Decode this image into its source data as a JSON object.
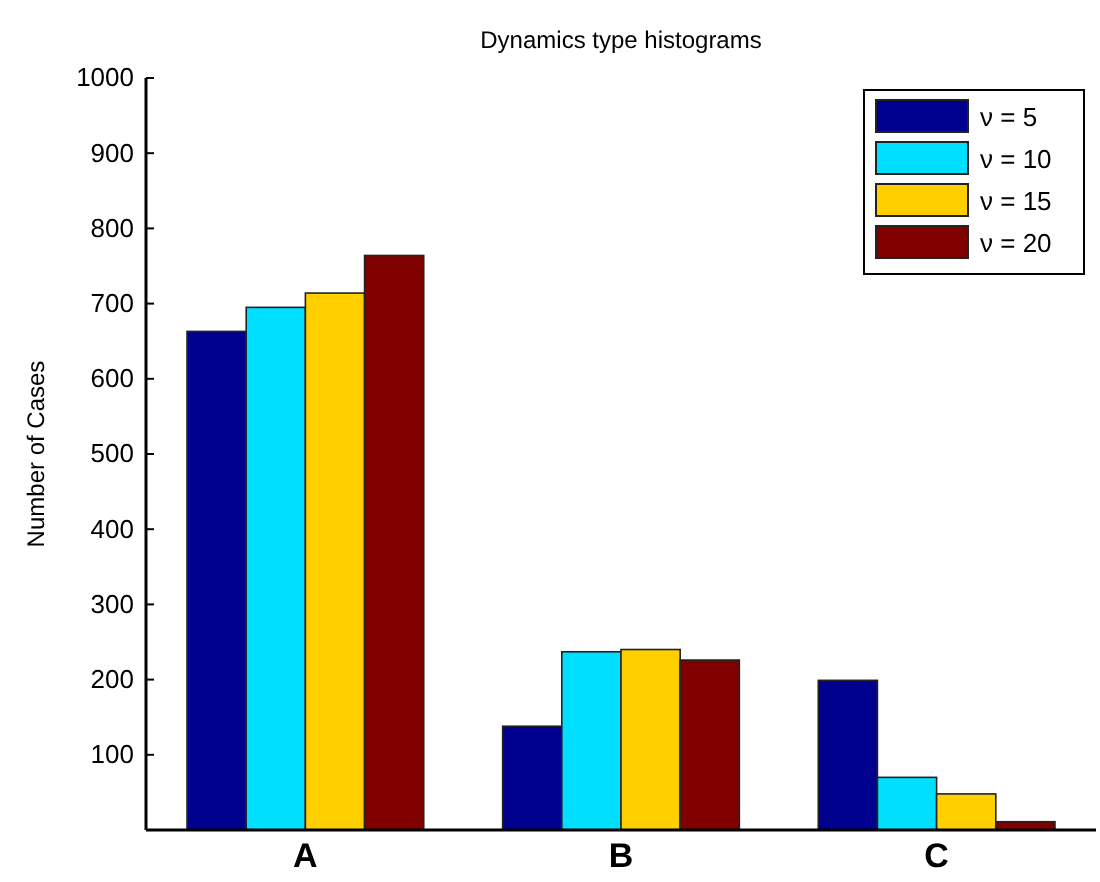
{
  "chart_data": {
    "type": "bar",
    "title": "Dynamics type histograms",
    "ylabel": "Number of Cases",
    "categories": [
      "A",
      "B",
      "C"
    ],
    "series": [
      {
        "name": "ν = 5",
        "color": "#00008f",
        "values": [
          663,
          138,
          199
        ]
      },
      {
        "name": "ν = 10",
        "color": "#00dfff",
        "values": [
          695,
          237,
          70
        ]
      },
      {
        "name": "ν = 15",
        "color": "#ffcf00",
        "values": [
          714,
          240,
          48
        ]
      },
      {
        "name": "ν = 20",
        "color": "#800000",
        "values": [
          764,
          226,
          11
        ]
      }
    ],
    "ylim": [
      0,
      1000
    ],
    "yticks": [
      100,
      200,
      300,
      400,
      500,
      600,
      700,
      800,
      900,
      1000
    ],
    "grid": false,
    "legend": "top right"
  }
}
